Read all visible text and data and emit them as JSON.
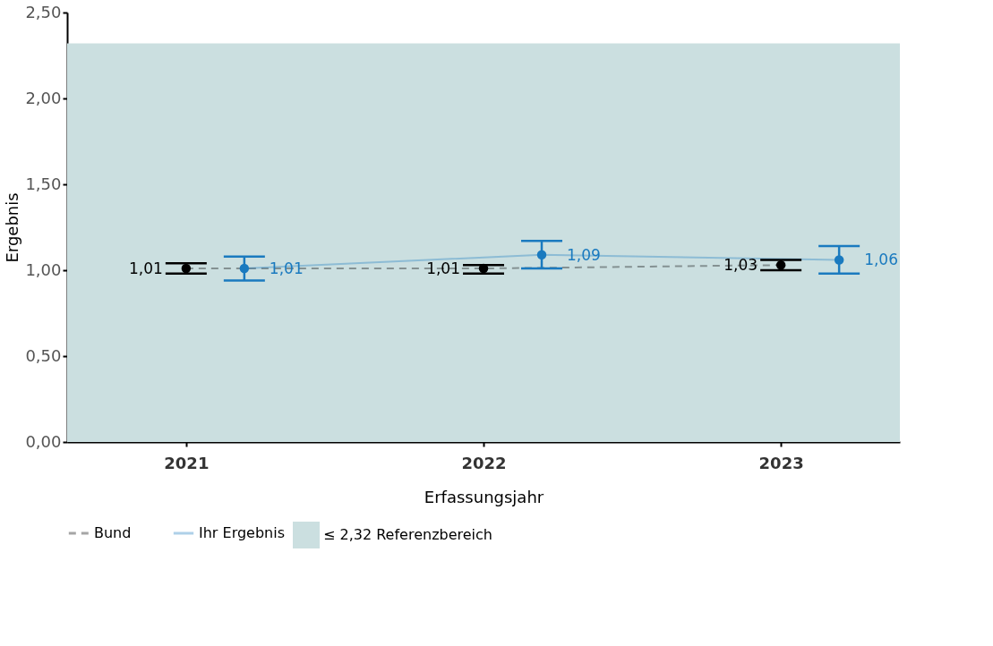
{
  "chart_data": {
    "type": "line",
    "xlabel": "Erfassungsjahr",
    "ylabel": "Ergebnis",
    "categories": [
      "2021",
      "2022",
      "2023"
    ],
    "series": [
      {
        "name": "Bund",
        "color": "#000000",
        "line_style": "dashed",
        "values": [
          1.01,
          1.01,
          1.03
        ],
        "errors": [
          [
            0.98,
            1.04
          ],
          [
            0.98,
            1.03
          ],
          [
            1.0,
            1.06
          ]
        ],
        "value_labels": [
          "1,01",
          "1,01",
          "1,03"
        ]
      },
      {
        "name": "Ihr Ergebnis",
        "color": "#1a7abf",
        "line_style": "solid",
        "values": [
          1.01,
          1.09,
          1.06
        ],
        "errors": [
          [
            0.94,
            1.08
          ],
          [
            1.01,
            1.17
          ],
          [
            0.98,
            1.14
          ]
        ],
        "value_labels": [
          "1,01",
          "1,09",
          "1,06"
        ]
      }
    ],
    "ylim": [
      0,
      2.5
    ],
    "yticks": [
      {
        "value": 0,
        "label": "0,00"
      },
      {
        "value": 0.5,
        "label": "0,50"
      },
      {
        "value": 1,
        "label": "1,00"
      },
      {
        "value": 1.5,
        "label": "1,50"
      },
      {
        "value": 2,
        "label": "2,00"
      },
      {
        "value": 2.5,
        "label": "2,50"
      }
    ],
    "bands": [
      {
        "axis": "y",
        "from": 0,
        "to": 2.32,
        "label": "≤ 2,32 Referenzbereich",
        "color": "#cbdfe0"
      }
    ],
    "marker": "circle",
    "grid": false,
    "legend": "bottom"
  }
}
